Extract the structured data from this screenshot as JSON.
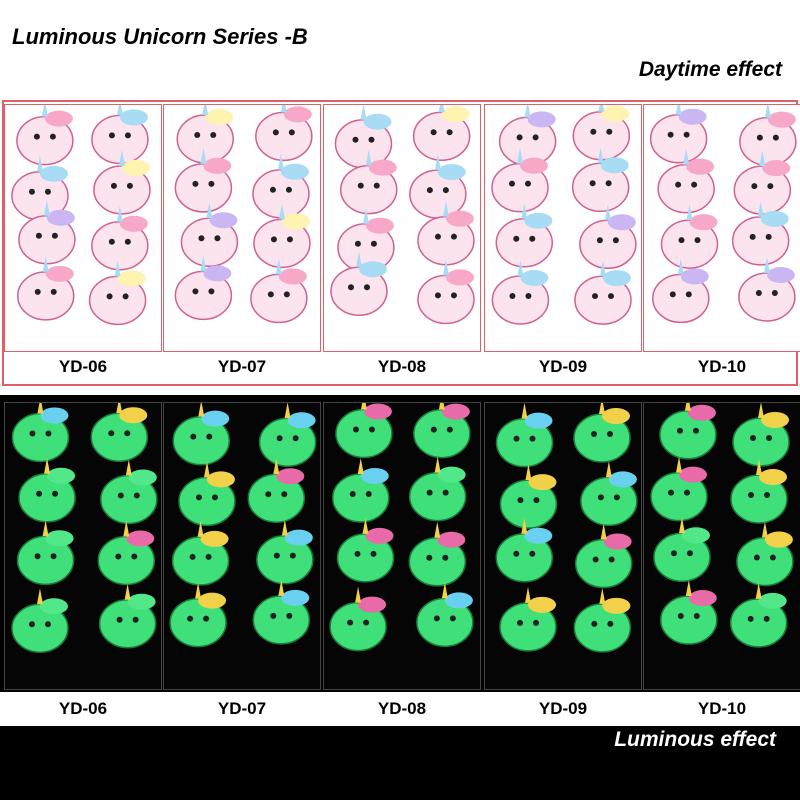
{
  "title": "Luminous Unicorn Series -B",
  "daytime": {
    "caption": "Daytime effect",
    "labels": [
      "YD-06",
      "YD-07",
      "YD-08",
      "YD-09",
      "YD-10"
    ]
  },
  "luminous": {
    "caption": "Luminous effect",
    "labels": [
      "YD-06",
      "YD-07",
      "YD-08",
      "YD-09",
      "YD-10"
    ]
  }
}
